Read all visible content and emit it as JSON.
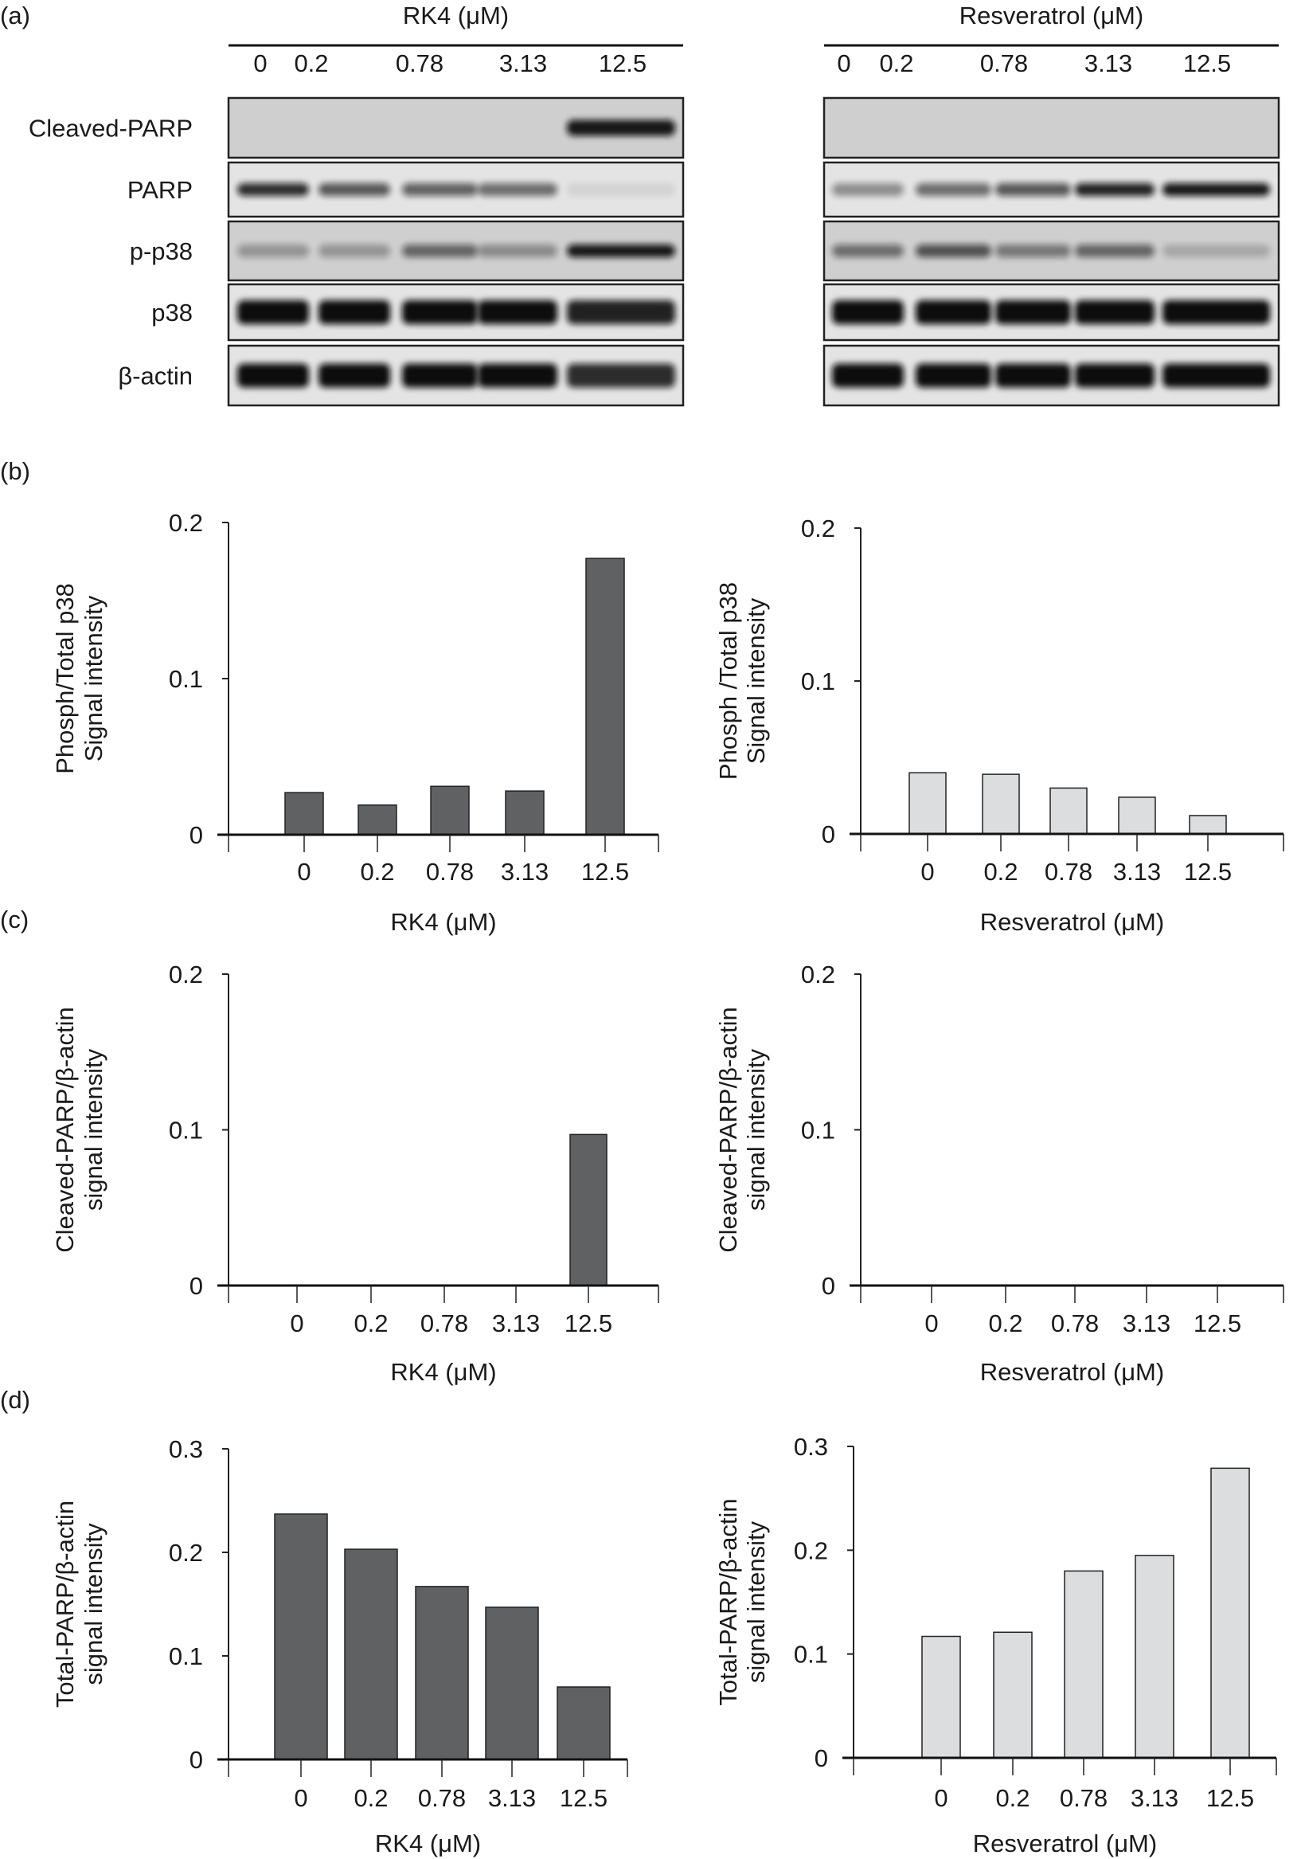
{
  "panel_labels": [
    "(a)",
    "(b)",
    "(c)",
    "(d)"
  ],
  "blots": {
    "row_labels": [
      "Cleaved-PARP",
      "PARP",
      "p-p38",
      "p38",
      "β-actin"
    ],
    "groups": [
      {
        "title": "RK4 (μM)",
        "lanes": [
          "0",
          "0.2",
          "0.78",
          "3.13",
          "12.5"
        ],
        "band_intensity": [
          [
            0,
            0,
            0,
            0,
            0.95
          ],
          [
            0.85,
            0.65,
            0.6,
            0.55,
            0.08
          ],
          [
            0.3,
            0.3,
            0.55,
            0.35,
            0.95
          ],
          [
            1,
            1,
            1,
            1,
            0.9
          ],
          [
            1,
            1,
            1,
            1,
            0.85
          ]
        ]
      },
      {
        "title": "Resveratrol (μM)",
        "lanes": [
          "0",
          "0.2",
          "0.78",
          "3.13",
          "12.5"
        ],
        "band_intensity": [
          [
            0,
            0,
            0,
            0,
            0
          ],
          [
            0.4,
            0.55,
            0.65,
            0.9,
            0.95
          ],
          [
            0.5,
            0.65,
            0.45,
            0.55,
            0.2
          ],
          [
            1,
            1,
            1,
            1,
            1
          ],
          [
            1,
            1,
            1,
            1,
            1
          ]
        ]
      }
    ],
    "colors": {
      "gel_dark": "#cfcfcf",
      "gel_light": "#e4e4e4",
      "band": "#111111"
    }
  },
  "chart_data": [
    {
      "type": "bar",
      "panel": "(b)",
      "title": "",
      "categories": [
        "0",
        "0.2",
        "0.78",
        "3.13",
        "12.5"
      ],
      "values": [
        0.027,
        0.019,
        0.031,
        0.028,
        0.177
      ],
      "xlabel": "RK4 (μM)",
      "ylabel": [
        "Phosph/Total p38",
        "Signal intensity"
      ],
      "ylim": [
        0,
        0.2
      ],
      "yticks": [
        "0",
        "0.1",
        "0.2"
      ],
      "color": "#606163"
    },
    {
      "type": "bar",
      "panel": "(b)",
      "title": "",
      "categories": [
        "0",
        "0.2",
        "0.78",
        "3.13",
        "12.5"
      ],
      "values": [
        0.04,
        0.039,
        0.03,
        0.024,
        0.012
      ],
      "xlabel": "Resveratrol (μM)",
      "ylabel": [
        "Phosph /Total p38",
        "Signal intensity"
      ],
      "ylim": [
        0,
        0.2
      ],
      "yticks": [
        "0",
        "0.1",
        "0.2"
      ],
      "color": "#dcdddf"
    },
    {
      "type": "bar",
      "panel": "(c)",
      "title": "",
      "categories": [
        "0",
        "0.2",
        "0.78",
        "3.13",
        "12.5"
      ],
      "values": [
        0,
        0,
        0,
        0,
        0.097
      ],
      "xlabel": "RK4 (μM)",
      "ylabel": [
        "Cleaved-PARP/β-actin",
        "signal intensity"
      ],
      "ylim": [
        0,
        0.2
      ],
      "yticks": [
        "0",
        "0.1",
        "0.2"
      ],
      "color": "#606163"
    },
    {
      "type": "bar",
      "panel": "(c)",
      "title": "",
      "categories": [
        "0",
        "0.2",
        "0.78",
        "3.13",
        "12.5"
      ],
      "values": [
        0,
        0,
        0,
        0,
        0
      ],
      "xlabel": "Resveratrol (μM)",
      "ylabel": [
        "Cleaved-PARP/β-actin",
        "signal intensity"
      ],
      "ylim": [
        0,
        0.2
      ],
      "yticks": [
        "0",
        "0.1",
        "0.2"
      ],
      "color": "#dcdddf"
    },
    {
      "type": "bar",
      "panel": "(d)",
      "title": "",
      "categories": [
        "0",
        "0.2",
        "0.78",
        "3.13",
        "12.5"
      ],
      "values": [
        0.237,
        0.203,
        0.167,
        0.147,
        0.07
      ],
      "xlabel": "RK4 (μM)",
      "ylabel": [
        "Total-PARP/β-actin",
        "signal intensity"
      ],
      "ylim": [
        0,
        0.3
      ],
      "yticks": [
        "0",
        "0.1",
        "0.2",
        "0.3"
      ],
      "color": "#606163"
    },
    {
      "type": "bar",
      "panel": "(d)",
      "title": "",
      "categories": [
        "0",
        "0.2",
        "0.78",
        "3.13",
        "12.5"
      ],
      "values": [
        0.117,
        0.121,
        0.18,
        0.195,
        0.279
      ],
      "xlabel": "Resveratrol (μM)",
      "ylabel": [
        "Total-PARP/β-actin",
        "signal intensity"
      ],
      "ylim": [
        0,
        0.3
      ],
      "yticks": [
        "0",
        "0.1",
        "0.2",
        "0.3"
      ],
      "color": "#dcdddf"
    }
  ]
}
